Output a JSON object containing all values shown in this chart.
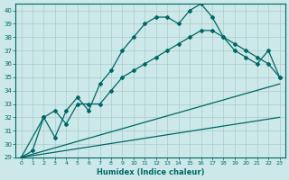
{
  "xlabel": "Humidex (Indice chaleur)",
  "bg_color": "#cce8e8",
  "grid_color": "#aacccc",
  "line_color": "#006666",
  "xlim": [
    -0.5,
    23.5
  ],
  "ylim": [
    29,
    40.5
  ],
  "yticks": [
    29,
    30,
    31,
    32,
    33,
    34,
    35,
    36,
    37,
    38,
    39,
    40
  ],
  "xticks": [
    0,
    1,
    2,
    3,
    4,
    5,
    6,
    7,
    8,
    9,
    10,
    11,
    12,
    13,
    14,
    15,
    16,
    17,
    18,
    19,
    20,
    21,
    22,
    23
  ],
  "line1_x": [
    0,
    1,
    2,
    3,
    4,
    5,
    6,
    7,
    8,
    9,
    10,
    11,
    12,
    13,
    14,
    15,
    16,
    17,
    18,
    19,
    20,
    21,
    22,
    23
  ],
  "line1_y": [
    29.0,
    29.5,
    32.0,
    30.5,
    32.5,
    33.5,
    32.5,
    34.5,
    35.5,
    37.0,
    38.0,
    39.0,
    39.5,
    39.5,
    39.0,
    40.0,
    40.5,
    39.5,
    38.0,
    37.0,
    36.5,
    36.0,
    37.0,
    35.0
  ],
  "line2_x": [
    0,
    2,
    3,
    4,
    5,
    6,
    7,
    8,
    9,
    10,
    11,
    12,
    13,
    14,
    15,
    16,
    17,
    18,
    19,
    20,
    21,
    22,
    23
  ],
  "line2_y": [
    29.0,
    32.0,
    32.5,
    31.5,
    33.0,
    33.0,
    33.0,
    34.0,
    35.0,
    35.5,
    36.0,
    36.5,
    37.0,
    37.5,
    38.0,
    38.5,
    38.5,
    38.0,
    37.5,
    37.0,
    36.5,
    36.0,
    35.0
  ],
  "line3_x": [
    0,
    23
  ],
  "line3_y": [
    29.0,
    34.5
  ],
  "line4_x": [
    0,
    23
  ],
  "line4_y": [
    29.0,
    32.0
  ]
}
